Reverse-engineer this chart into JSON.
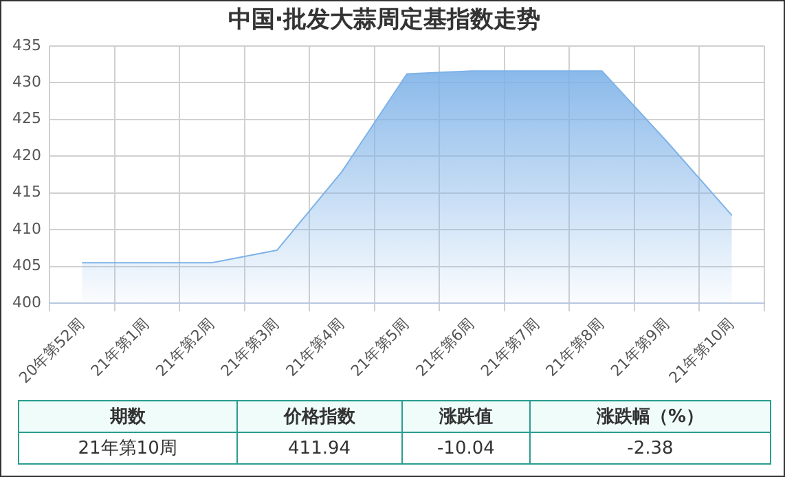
{
  "chart_data": {
    "type": "area",
    "title": "中国·批发大蒜周定基指数走势",
    "categories": [
      "20年第52周",
      "21年第1周",
      "21年第2周",
      "21年第3周",
      "21年第4周",
      "21年第5周",
      "21年第6周",
      "21年第7周",
      "21年第8周",
      "21年第9周",
      "21年第10周"
    ],
    "series": [
      {
        "color": "#7eb2e8",
        "values": [
          405.5,
          405.5,
          405.5,
          407.2,
          417.9,
          431.2,
          431.6,
          431.6,
          431.6,
          421.98,
          411.94
        ]
      }
    ],
    "ylim": [
      400,
      435
    ],
    "yticks": [
      400,
      405,
      410,
      415,
      420,
      425,
      430,
      435
    ],
    "grid": true,
    "legend": false,
    "marker": "none",
    "annotations": [
      "期数",
      "价格指数",
      "涨跌值",
      "涨跌幅（%）",
      "21年第10周",
      "411.94",
      "-10.04",
      "-2.38"
    ]
  }
}
